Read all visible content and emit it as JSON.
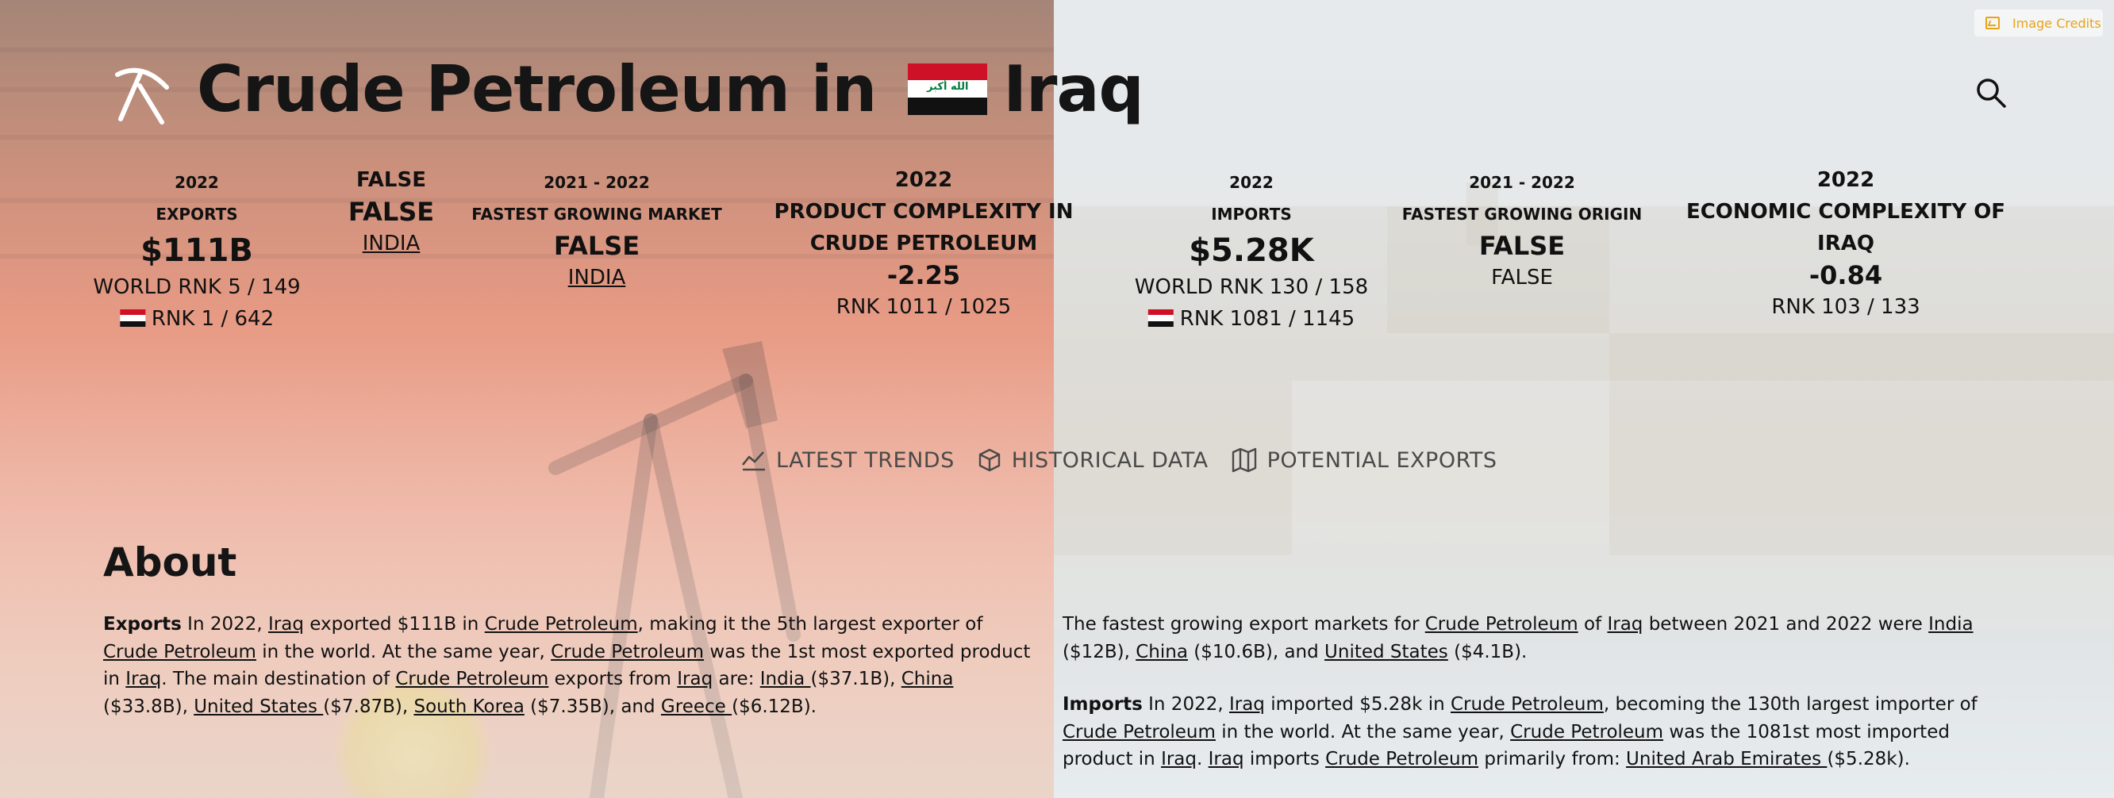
{
  "header": {
    "title_prefix": "Crude Petroleum in",
    "country": "Iraq",
    "flag_text": "الله أكبر",
    "image_credits": "Image Credits"
  },
  "stats": {
    "exports": {
      "year": "2022",
      "label": "EXPORTS",
      "value": "$111B",
      "world_rank": "WORLD RNK 5 / 149",
      "country_rank": "RNK 1 / 642"
    },
    "export_growth": {
      "line1": "FALSE",
      "line2": "FALSE",
      "link": "INDIA"
    },
    "fastest_market": {
      "year": "2021 - 2022",
      "label": "FASTEST GROWING MARKET",
      "value": "FALSE",
      "link": "INDIA"
    },
    "product_complexity": {
      "year": "2022",
      "label1": "PRODUCT COMPLEXITY IN",
      "label2": "CRUDE PETROLEUM",
      "value": "-2.25",
      "rank": "RNK 1011 / 1025"
    },
    "imports": {
      "year": "2022",
      "label": "IMPORTS",
      "value": "$5.28K",
      "world_rank": "WORLD RNK 130 / 158",
      "country_rank": "RNK 1081 / 1145"
    },
    "fastest_origin": {
      "year": "2021 - 2022",
      "label": "FASTEST GROWING ORIGIN",
      "value": "FALSE",
      "sub": "FALSE"
    },
    "economic_complexity": {
      "year": "2022",
      "label1": "ECONOMIC COMPLEXITY OF",
      "label2": "IRAQ",
      "value": "-0.84",
      "rank": "RNK 103 / 133"
    }
  },
  "tabs": [
    {
      "label": "LATEST TRENDS",
      "icon": "trend-line-icon"
    },
    {
      "label": "HISTORICAL DATA",
      "icon": "cube-icon"
    },
    {
      "label": "POTENTIAL EXPORTS",
      "icon": "map-icon"
    }
  ],
  "about": {
    "heading": "About",
    "exports_para": {
      "lead": "Exports",
      "t1": " In 2022, ",
      "l1": "Iraq",
      "t2": " exported $111B in ",
      "l2": "Crude Petroleum",
      "t3": ", making it the 5th largest exporter of ",
      "l3": "Crude Petroleum",
      "t4": " in the world. At the same year, ",
      "l4": "Crude Petroleum",
      "t5": " was the 1st most exported product in ",
      "l5": "Iraq",
      "t6": ". The main destination of ",
      "l6": "Crude Petroleum",
      "t7": " exports from ",
      "l7": "Iraq",
      "t8": " are: ",
      "l8": "India ",
      "t9": "($37.1B), ",
      "l9": "China ",
      "t10": "($33.8B), ",
      "l10": "United States ",
      "t11": "($7.87B), ",
      "l11": "South Korea",
      "t12": " ($7.35B), and ",
      "l12": "Greece ",
      "t13": "($6.12B)."
    },
    "growth_para": {
      "t1": "The fastest growing export markets for ",
      "l1": "Crude Petroleum",
      "t2": " of ",
      "l2": "Iraq",
      "t3": " between 2021 and 2022 were ",
      "l3": "India",
      "t4": " ($12B), ",
      "l4": "China",
      "t5": " ($10.6B), and ",
      "l5": "United States",
      "t6": " ($4.1B)."
    },
    "imports_para": {
      "lead": "Imports",
      "t1": " In 2022, ",
      "l1": "Iraq",
      "t2": " imported $5.28k in ",
      "l2": "Crude Petroleum",
      "t3": ", becoming the 130th largest importer of ",
      "l3": "Crude Petroleum",
      "t4": " in the world. At the same year, ",
      "l4": "Crude Petroleum",
      "t5": " was the 1081st most imported product in ",
      "l5": "Iraq",
      "t6": ". ",
      "l6": "Iraq",
      "t7": " imports ",
      "l7": "Crude Petroleum",
      "t8": " primarily from: ",
      "l8": "United Arab Emirates ",
      "t9": "($5.28k)."
    }
  }
}
